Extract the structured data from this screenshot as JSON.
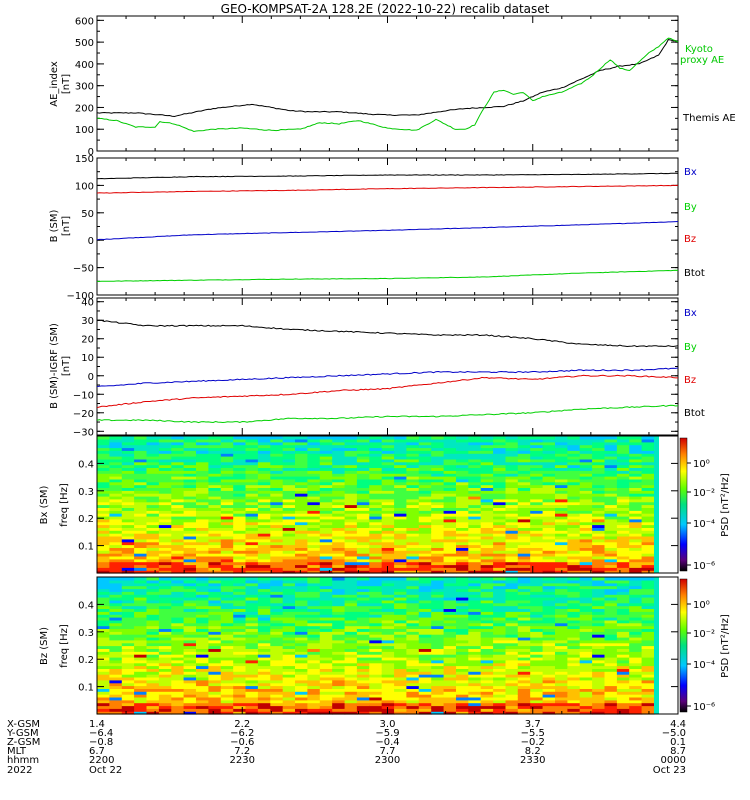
{
  "title": "GEO-KOMPSAT-2A 128.2E (2022-10-22) recalib dataset",
  "colors": {
    "black": "#000000",
    "red": "#e00000",
    "green": "#00d000",
    "blue": "#0000c8",
    "kyoto": "#00c800"
  },
  "chart_data": [
    {
      "type": "line",
      "id": "ae",
      "ylabel": "AE_index",
      "yunit": "[nT]",
      "ylim": [
        0,
        620
      ],
      "yticks": [
        0,
        100,
        200,
        300,
        400,
        500,
        600
      ],
      "xlim": [
        0,
        60
      ],
      "series": [
        {
          "name": "Themis AE",
          "color": "#000000",
          "x": [
            0,
            4,
            8,
            12,
            16,
            20,
            22,
            25,
            28,
            30,
            33,
            36,
            38,
            40,
            42,
            44,
            46,
            48,
            50,
            52,
            54,
            56,
            58,
            59,
            60
          ],
          "y": [
            175,
            175,
            160,
            195,
            215,
            185,
            180,
            180,
            170,
            165,
            165,
            185,
            195,
            200,
            205,
            230,
            270,
            290,
            330,
            370,
            390,
            400,
            440,
            510,
            505
          ]
        },
        {
          "name": "Kyoto proxy AE",
          "color": "#00c800",
          "x": [
            0,
            2,
            4,
            6,
            6.5,
            8,
            10,
            12,
            15,
            18,
            21,
            23,
            25,
            27,
            30,
            33,
            35,
            37,
            38,
            39,
            40,
            41,
            42,
            43,
            44,
            45,
            46,
            48,
            50,
            51,
            52,
            53,
            54,
            55,
            56,
            57,
            58,
            59,
            60
          ],
          "y": [
            150,
            140,
            110,
            110,
            135,
            125,
            90,
            100,
            105,
            95,
            100,
            130,
            125,
            140,
            105,
            95,
            145,
            100,
            100,
            120,
            200,
            270,
            280,
            260,
            270,
            230,
            250,
            270,
            310,
            340,
            380,
            420,
            380,
            370,
            410,
            450,
            480,
            520,
            500
          ]
        }
      ],
      "labels": [
        "Kyoto proxy AE",
        "Themis AE"
      ]
    },
    {
      "type": "line",
      "id": "bsm",
      "ylabel": "B (SM)",
      "yunit": "[nT]",
      "ylim": [
        -100,
        150
      ],
      "yticks": [
        -100,
        -50,
        0,
        50,
        100,
        150
      ],
      "xlim": [
        0,
        60
      ],
      "series": [
        {
          "name": "Bx",
          "color": "#0000c8",
          "x": [
            0,
            10,
            20,
            30,
            40,
            50,
            60
          ],
          "y": [
            1,
            10,
            14,
            18,
            23,
            28,
            34
          ]
        },
        {
          "name": "By",
          "color": "#00d000",
          "x": [
            0,
            10,
            20,
            30,
            40,
            50,
            60
          ],
          "y": [
            -75,
            -73,
            -71,
            -70,
            -67,
            -60,
            -55
          ]
        },
        {
          "name": "Bz",
          "color": "#e00000",
          "x": [
            0,
            10,
            20,
            30,
            40,
            50,
            60
          ],
          "y": [
            86,
            89,
            91,
            94,
            96,
            98,
            100
          ]
        },
        {
          "name": "Btot",
          "color": "#000000",
          "x": [
            0,
            10,
            20,
            30,
            40,
            50,
            60
          ],
          "y": [
            112,
            116,
            117,
            119,
            119,
            120,
            122
          ]
        }
      ],
      "labels": [
        "Bx",
        "By",
        "Bz",
        "Btot"
      ]
    },
    {
      "type": "line",
      "id": "bigrf",
      "ylabel": "B (SM)-IGRF (SM)",
      "yunit": "[nT]",
      "ylim": [
        -32,
        42
      ],
      "yticks": [
        -30,
        -20,
        -10,
        0,
        10,
        20,
        30,
        40
      ],
      "xlim": [
        0,
        60
      ],
      "series": [
        {
          "name": "Bx",
          "color": "#0000c8",
          "x": [
            0,
            5,
            10,
            15,
            20,
            25,
            30,
            35,
            40,
            45,
            50,
            55,
            60
          ],
          "y": [
            -6,
            -4,
            -3,
            -2,
            -1,
            0,
            1,
            2,
            2,
            2,
            3,
            3,
            4
          ]
        },
        {
          "name": "By",
          "color": "#00d000",
          "x": [
            0,
            5,
            10,
            15,
            20,
            25,
            30,
            35,
            40,
            45,
            50,
            55,
            60
          ],
          "y": [
            -24,
            -24,
            -25,
            -25,
            -23,
            -23,
            -22,
            -22,
            -21,
            -20,
            -18,
            -17,
            -16
          ]
        },
        {
          "name": "Bz",
          "color": "#e00000",
          "x": [
            0,
            5,
            10,
            15,
            20,
            25,
            30,
            35,
            40,
            45,
            50,
            55,
            60
          ],
          "y": [
            -17,
            -14,
            -12,
            -11,
            -10,
            -8,
            -7,
            -4,
            -1,
            -2,
            0,
            0,
            -1
          ]
        },
        {
          "name": "Btot",
          "color": "#000000",
          "x": [
            0,
            5,
            10,
            15,
            20,
            25,
            30,
            35,
            40,
            45,
            50,
            55,
            60
          ],
          "y": [
            30,
            27,
            27,
            27,
            25,
            24,
            23,
            22,
            22,
            20,
            17,
            16,
            16
          ]
        }
      ],
      "labels": [
        "Bx",
        "By",
        "Bz",
        "Btot"
      ]
    },
    {
      "type": "heatmap",
      "id": "bxspec",
      "ylabel": "Bx (SM)",
      "ylabel2": "freq [Hz]",
      "ylim": [
        0,
        0.5
      ],
      "yticks": [
        0.1,
        0.2,
        0.3,
        0.4
      ],
      "ytick_labels": [
        "0.1",
        "0.2",
        "0.3",
        "0.4"
      ],
      "colorbar_label": "PSD [nT²/Hz]",
      "colorbar_ticks": [
        "10⁰",
        "10⁻²",
        "10⁻⁴",
        "10⁻⁶"
      ]
    },
    {
      "type": "heatmap",
      "id": "bzspec",
      "ylabel": "Bz (SM)",
      "ylabel2": "freq [Hz]",
      "ylim": [
        0,
        0.5
      ],
      "yticks": [
        0.1,
        0.2,
        0.3,
        0.4
      ],
      "ytick_labels": [
        "0.1",
        "0.2",
        "0.3",
        "0.4"
      ],
      "colorbar_label": "PSD [nT²/Hz]",
      "colorbar_ticks": [
        "10⁰",
        "10⁻²",
        "10⁻⁴",
        "10⁻⁶"
      ]
    }
  ],
  "orbit_labels": [
    "X-GSM",
    "Y-GSM",
    "Z-GSM",
    "MLT",
    "hhmm",
    "2022"
  ],
  "orbit_columns": [
    {
      "x_gsm": "1.4",
      "y_gsm": "-6.4",
      "z_gsm": "-0.8",
      "mlt": "6.7",
      "hhmm": "2200",
      "date": "Oct 22"
    },
    {
      "x_gsm": "2.2",
      "y_gsm": "-6.2",
      "z_gsm": "-0.6",
      "mlt": "7.2",
      "hhmm": "2230",
      "date": ""
    },
    {
      "x_gsm": "3.0",
      "y_gsm": "-5.9",
      "z_gsm": "-0.4",
      "mlt": "7.7",
      "hhmm": "2300",
      "date": ""
    },
    {
      "x_gsm": "3.7",
      "y_gsm": "-5.5",
      "z_gsm": "-0.2",
      "mlt": "8.2",
      "hhmm": "2330",
      "date": ""
    },
    {
      "x_gsm": "4.4",
      "y_gsm": "-5.0",
      "z_gsm": "0.1",
      "mlt": "8.7",
      "hhmm": "0000",
      "date": "Oct 23"
    }
  ]
}
